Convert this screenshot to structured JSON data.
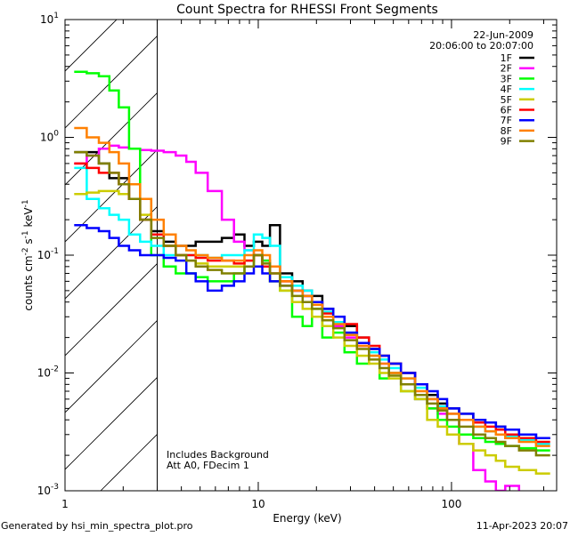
{
  "chart_data": {
    "type": "line",
    "title": "Count Spectra for RHESSI Front Segments",
    "xlabel": "Energy (keV)",
    "ylabel": {
      "base": "counts cm",
      "parts": [
        "-2",
        " s",
        "-1",
        " keV",
        "-1"
      ]
    },
    "xscale": "log",
    "yscale": "log",
    "xlim": [
      1,
      350
    ],
    "ylim": [
      0.001,
      10
    ],
    "x_tick_labels": [
      {
        "value": 1,
        "label": "1"
      },
      {
        "value": 10,
        "label": "10"
      },
      {
        "value": 100,
        "label": "100"
      }
    ],
    "y_tick_labels": [
      {
        "value": 10,
        "exp": "1"
      },
      {
        "value": 1,
        "exp": "0"
      },
      {
        "value": 0.1,
        "exp": "-1"
      },
      {
        "value": 0.01,
        "exp": "-2"
      },
      {
        "value": 0.001,
        "exp": "-3"
      }
    ],
    "hatched_region_keV": [
      1,
      3
    ],
    "legend_placement": "top-right",
    "date": "22-Jun-2009",
    "time_range": "20:06:00 to 20:07:00",
    "annotations": [
      "Includes Background",
      "Att A0, FDecim 1"
    ],
    "energy": [
      1.2,
      1.4,
      1.6,
      1.8,
      2,
      2.3,
      2.6,
      3,
      3.5,
      4,
      4.5,
      5,
      6,
      7,
      8,
      9,
      10,
      11,
      12,
      14,
      16,
      18,
      20,
      23,
      26,
      30,
      35,
      40,
      45,
      50,
      60,
      70,
      80,
      90,
      100,
      120,
      140,
      160,
      180,
      200,
      250,
      300
    ],
    "series": [
      {
        "name": "1F",
        "color": "#000000",
        "values": [
          0.75,
          0.75,
          0.6,
          0.45,
          0.45,
          0.3,
          0.2,
          0.16,
          0.13,
          0.12,
          0.12,
          0.13,
          0.13,
          0.14,
          0.15,
          0.12,
          0.13,
          0.12,
          0.18,
          0.07,
          0.06,
          0.05,
          0.045,
          0.035,
          0.03,
          0.025,
          0.02,
          0.016,
          0.014,
          0.012,
          0.01,
          0.008,
          0.0065,
          0.0055,
          0.005,
          0.0045,
          0.004,
          0.0038,
          0.0035,
          0.0033,
          0.003,
          0.0028
        ]
      },
      {
        "name": "2F",
        "color": "#ff00ff",
        "values": [
          0.6,
          0.7,
          0.8,
          0.85,
          0.82,
          0.8,
          0.78,
          0.77,
          0.75,
          0.7,
          0.62,
          0.5,
          0.35,
          0.2,
          0.13,
          0.11,
          0.1,
          0.09,
          0.08,
          0.06,
          0.05,
          0.045,
          0.04,
          0.03,
          0.025,
          0.02,
          0.017,
          0.014,
          0.012,
          0.01,
          0.008,
          0.006,
          0.005,
          0.0045,
          0.004,
          0.0025,
          0.0015,
          0.0012,
          0.001,
          0.0011,
          0.0009,
          0.0008
        ]
      },
      {
        "name": "3F",
        "color": "#00ff00",
        "values": [
          3.6,
          3.5,
          3.3,
          2.5,
          1.8,
          0.8,
          0.3,
          0.1,
          0.08,
          0.07,
          0.07,
          0.065,
          0.06,
          0.06,
          0.07,
          0.08,
          0.1,
          0.09,
          0.06,
          0.05,
          0.03,
          0.025,
          0.035,
          0.02,
          0.022,
          0.015,
          0.012,
          0.014,
          0.009,
          0.01,
          0.007,
          0.006,
          0.005,
          0.004,
          0.0035,
          0.003,
          0.0028,
          0.0026,
          0.0025,
          0.0024,
          0.0023,
          0.0022
        ]
      },
      {
        "name": "4F",
        "color": "#00ffff",
        "values": [
          0.55,
          0.3,
          0.25,
          0.22,
          0.2,
          0.15,
          0.13,
          0.12,
          0.1,
          0.1,
          0.1,
          0.1,
          0.095,
          0.1,
          0.1,
          0.11,
          0.15,
          0.14,
          0.12,
          0.065,
          0.055,
          0.05,
          0.04,
          0.033,
          0.027,
          0.022,
          0.018,
          0.015,
          0.013,
          0.011,
          0.009,
          0.0075,
          0.006,
          0.0052,
          0.0045,
          0.004,
          0.0035,
          0.0032,
          0.003,
          0.0029,
          0.0027,
          0.0025
        ]
      },
      {
        "name": "5F",
        "color": "#cccc00",
        "values": [
          0.33,
          0.34,
          0.35,
          0.35,
          0.33,
          0.3,
          0.22,
          0.15,
          0.12,
          0.1,
          0.09,
          0.085,
          0.08,
          0.08,
          0.08,
          0.09,
          0.1,
          0.08,
          0.06,
          0.05,
          0.04,
          0.035,
          0.03,
          0.025,
          0.02,
          0.017,
          0.014,
          0.012,
          0.01,
          0.009,
          0.007,
          0.006,
          0.004,
          0.0035,
          0.003,
          0.0025,
          0.0022,
          0.002,
          0.0018,
          0.0016,
          0.0015,
          0.0014
        ]
      },
      {
        "name": "6F",
        "color": "#ff0000",
        "values": [
          0.6,
          0.55,
          0.5,
          0.5,
          0.4,
          0.3,
          0.2,
          0.15,
          0.12,
          0.1,
          0.1,
          0.095,
          0.09,
          0.09,
          0.085,
          0.09,
          0.1,
          0.08,
          0.07,
          0.06,
          0.05,
          0.045,
          0.04,
          0.032,
          0.03,
          0.026,
          0.02,
          0.017,
          0.014,
          0.012,
          0.01,
          0.008,
          0.006,
          0.005,
          0.0045,
          0.004,
          0.0038,
          0.0035,
          0.0033,
          0.003,
          0.0028,
          0.0026
        ]
      },
      {
        "name": "7F",
        "color": "#0000ff",
        "values": [
          0.18,
          0.17,
          0.16,
          0.14,
          0.12,
          0.11,
          0.1,
          0.1,
          0.095,
          0.09,
          0.07,
          0.06,
          0.05,
          0.055,
          0.06,
          0.07,
          0.08,
          0.07,
          0.06,
          0.055,
          0.05,
          0.045,
          0.04,
          0.035,
          0.03,
          0.022,
          0.018,
          0.016,
          0.014,
          0.012,
          0.01,
          0.008,
          0.007,
          0.006,
          0.005,
          0.0045,
          0.004,
          0.0038,
          0.0035,
          0.0033,
          0.003,
          0.0028
        ]
      },
      {
        "name": "8F",
        "color": "#ff8000",
        "values": [
          1.2,
          1.0,
          0.9,
          0.75,
          0.6,
          0.4,
          0.3,
          0.2,
          0.15,
          0.12,
          0.11,
          0.1,
          0.095,
          0.09,
          0.09,
          0.1,
          0.11,
          0.1,
          0.08,
          0.06,
          0.05,
          0.045,
          0.038,
          0.03,
          0.026,
          0.021,
          0.017,
          0.014,
          0.012,
          0.01,
          0.009,
          0.007,
          0.006,
          0.005,
          0.0045,
          0.004,
          0.0035,
          0.0032,
          0.003,
          0.0028,
          0.0026,
          0.0024
        ]
      },
      {
        "name": "9F",
        "color": "#808000",
        "values": [
          0.75,
          0.7,
          0.6,
          0.5,
          0.4,
          0.3,
          0.2,
          0.14,
          0.12,
          0.1,
          0.09,
          0.08,
          0.075,
          0.07,
          0.07,
          0.08,
          0.1,
          0.085,
          0.07,
          0.055,
          0.045,
          0.04,
          0.035,
          0.028,
          0.024,
          0.019,
          0.016,
          0.013,
          0.011,
          0.0095,
          0.008,
          0.0065,
          0.0055,
          0.0048,
          0.004,
          0.0035,
          0.003,
          0.0028,
          0.0026,
          0.0024,
          0.0022,
          0.002
        ]
      }
    ]
  },
  "footer": {
    "generated_by": "Generated by hsi_min_spectra_plot.pro",
    "timestamp": "11-Apr-2023 20:07"
  }
}
